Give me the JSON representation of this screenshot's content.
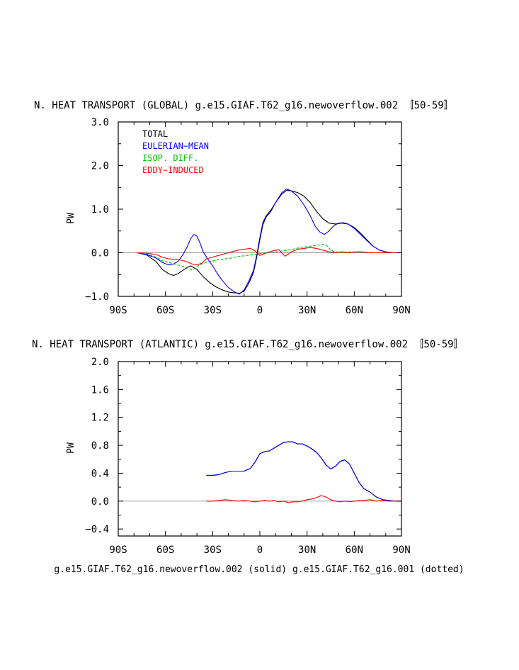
{
  "caption": "g.e15.GIAF.T62_g16.newoverflow.002 (solid) g.e15.GIAF.T62_g16.001 (dotted)",
  "colors": {
    "total": "#000000",
    "eulerian": "#0000ff",
    "isop": "#00c000",
    "eddy": "#ff0000",
    "zero": "#999999"
  },
  "chart_data": [
    {
      "type": "line",
      "title": "N. HEAT TRANSPORT (GLOBAL) g.e15.GIAF.T62_g16.newoverflow.002 〚50-59〛",
      "ylabel": "PW",
      "xlim": [
        -90,
        90
      ],
      "ylim": [
        -1.0,
        3.0
      ],
      "xticks": [
        -90,
        -60,
        -30,
        0,
        30,
        60,
        90
      ],
      "xticklabels": [
        "90S",
        "60S",
        "30S",
        "0",
        "30N",
        "60N",
        "90N"
      ],
      "yticks": [
        -1.0,
        0.0,
        1.0,
        2.0,
        3.0
      ],
      "yticklabels": [
        "−1.0",
        "0.0",
        "1.0",
        "2.0",
        "3.0"
      ],
      "legend": [
        "TOTAL",
        "EULERIAN−MEAN",
        "ISOP. DIFF.",
        "EDDY−INDUCED"
      ],
      "legend_position": "top-left",
      "series": [
        {
          "name": "TOTAL",
          "key": "total",
          "x": [
            -78,
            -72,
            -66,
            -62,
            -58,
            -55,
            -52,
            -48,
            -44,
            -40,
            -36,
            -32,
            -28,
            -24,
            -20,
            -16,
            -13,
            -10,
            -7,
            -4,
            -2,
            0,
            2,
            4,
            7,
            10,
            14,
            17,
            20,
            24,
            28,
            32,
            36,
            40,
            44,
            48,
            52,
            56,
            60,
            64,
            68,
            72,
            76,
            80,
            85,
            90
          ],
          "y": [
            0,
            -0.05,
            -0.2,
            -0.38,
            -0.48,
            -0.52,
            -0.48,
            -0.38,
            -0.3,
            -0.38,
            -0.55,
            -0.68,
            -0.78,
            -0.85,
            -0.9,
            -0.92,
            -0.93,
            -0.88,
            -0.7,
            -0.45,
            -0.1,
            0.3,
            0.65,
            0.82,
            0.95,
            1.15,
            1.35,
            1.43,
            1.42,
            1.38,
            1.3,
            1.15,
            0.95,
            0.78,
            0.68,
            0.66,
            0.68,
            0.66,
            0.58,
            0.45,
            0.3,
            0.15,
            0.06,
            0.02,
            0,
            0
          ]
        },
        {
          "name": "EULERIAN−MEAN",
          "key": "eulerian",
          "x": [
            -78,
            -72,
            -66,
            -62,
            -58,
            -55,
            -52,
            -49,
            -46,
            -44,
            -42,
            -40,
            -38,
            -36,
            -33,
            -30,
            -27,
            -24,
            -20,
            -16,
            -13,
            -10,
            -7,
            -4,
            -2,
            0,
            2,
            4,
            7,
            10,
            14,
            17,
            20,
            24,
            28,
            32,
            35,
            38,
            41,
            44,
            47,
            50,
            53,
            56,
            60,
            64,
            68,
            72,
            76,
            80,
            85,
            90
          ],
          "y": [
            0,
            -0.04,
            -0.12,
            -0.22,
            -0.28,
            -0.26,
            -0.2,
            -0.05,
            0.15,
            0.32,
            0.42,
            0.38,
            0.22,
            0.02,
            -0.15,
            -0.3,
            -0.48,
            -0.63,
            -0.8,
            -0.9,
            -0.95,
            -0.85,
            -0.65,
            -0.4,
            -0.05,
            0.35,
            0.7,
            0.85,
            0.98,
            1.15,
            1.38,
            1.46,
            1.42,
            1.3,
            1.1,
            0.85,
            0.62,
            0.48,
            0.42,
            0.5,
            0.62,
            0.68,
            0.69,
            0.66,
            0.56,
            0.42,
            0.28,
            0.15,
            0.06,
            0.02,
            0,
            0
          ]
        },
        {
          "name": "ISOP. DIFF.",
          "key": "isop",
          "x": [
            -78,
            -72,
            -66,
            -62,
            -58,
            -54,
            -50,
            -46,
            -43,
            -40,
            -37,
            -34,
            -30,
            -26,
            -22,
            -18,
            -14,
            -10,
            -6,
            -2,
            2,
            6,
            10,
            14,
            18,
            22,
            26,
            30,
            34,
            38,
            41,
            43,
            45,
            48,
            52,
            56,
            60,
            64,
            68,
            72,
            76,
            80,
            85,
            90
          ],
          "y": [
            0,
            -0.02,
            -0.1,
            -0.18,
            -0.22,
            -0.26,
            -0.3,
            -0.34,
            -0.4,
            -0.32,
            -0.26,
            -0.22,
            -0.19,
            -0.16,
            -0.14,
            -0.12,
            -0.09,
            -0.07,
            -0.05,
            -0.03,
            -0.01,
            0,
            0.02,
            0.04,
            0.06,
            0.09,
            0.12,
            0.14,
            0.16,
            0.18,
            0.2,
            0.15,
            0.06,
            0.02,
            0.01,
            0.02,
            0.02,
            0.01,
            0.01,
            0,
            0,
            0,
            0,
            0
          ]
        },
        {
          "name": "EDDY−INDUCED",
          "key": "eddy",
          "x": [
            -78,
            -72,
            -66,
            -62,
            -58,
            -54,
            -50,
            -46,
            -43,
            -40,
            -37,
            -34,
            -30,
            -26,
            -22,
            -18,
            -14,
            -10,
            -6,
            -3,
            0,
            3,
            6,
            9,
            12,
            16,
            20,
            24,
            28,
            32,
            36,
            40,
            44,
            48,
            52,
            56,
            60,
            64,
            68,
            72,
            76,
            80,
            85,
            90
          ],
          "y": [
            0,
            -0.01,
            -0.04,
            -0.1,
            -0.14,
            -0.15,
            -0.17,
            -0.21,
            -0.26,
            -0.28,
            -0.24,
            -0.14,
            -0.1,
            -0.06,
            -0.02,
            0.02,
            0.06,
            0.08,
            0.1,
            0.04,
            -0.06,
            -0.02,
            0.02,
            0.05,
            0.07,
            -0.08,
            0.02,
            0.08,
            0.1,
            0.12,
            0.1,
            0.06,
            0.02,
            0.01,
            0.02,
            0.0,
            0.02,
            0.02,
            0.01,
            0,
            0,
            0,
            0,
            0
          ]
        }
      ]
    },
    {
      "type": "line",
      "title": "N. HEAT TRANSPORT (ATLANTIC) g.e15.GIAF.T62_g16.newoverflow.002 〚50-59〛",
      "ylabel": "PW",
      "xlim": [
        -90,
        90
      ],
      "ylim": [
        -0.5,
        2.0
      ],
      "xticks": [
        -90,
        -60,
        -30,
        0,
        30,
        60,
        90
      ],
      "xticklabels": [
        "90S",
        "60S",
        "30S",
        "0",
        "30N",
        "60N",
        "90N"
      ],
      "yticks": [
        -0.4,
        0.0,
        0.4,
        0.8,
        1.2,
        1.6,
        2.0
      ],
      "yticklabels": [
        "−0.4",
        "0.0",
        "0.4",
        "0.8",
        "1.2",
        "1.6",
        "2.0"
      ],
      "series": [
        {
          "key": "total",
          "x": [
            -34,
            -30,
            -26,
            -22,
            -18,
            -14,
            -10,
            -6,
            -3,
            0,
            3,
            6,
            9,
            12,
            15,
            18,
            21,
            24,
            27,
            30,
            33,
            36,
            39,
            42,
            45,
            48,
            51,
            54,
            57,
            60,
            63,
            66,
            70,
            74,
            78,
            82,
            86,
            90
          ],
          "y": [
            0.37,
            0.37,
            0.38,
            0.41,
            0.43,
            0.43,
            0.43,
            0.47,
            0.56,
            0.68,
            0.71,
            0.72,
            0.76,
            0.8,
            0.84,
            0.85,
            0.85,
            0.82,
            0.82,
            0.79,
            0.75,
            0.7,
            0.62,
            0.52,
            0.46,
            0.5,
            0.57,
            0.59,
            0.53,
            0.4,
            0.27,
            0.18,
            0.13,
            0.06,
            0.02,
            0.01,
            0,
            0
          ]
        },
        {
          "key": "eulerian",
          "x": [
            -34,
            -30,
            -26,
            -22,
            -18,
            -14,
            -10,
            -6,
            -3,
            0,
            3,
            6,
            9,
            12,
            15,
            18,
            21,
            24,
            27,
            30,
            33,
            36,
            39,
            42,
            45,
            48,
            51,
            54,
            57,
            60,
            63,
            66,
            70,
            74,
            78,
            82,
            86,
            90
          ],
          "y": [
            0.37,
            0.37,
            0.38,
            0.41,
            0.43,
            0.43,
            0.43,
            0.47,
            0.56,
            0.68,
            0.71,
            0.72,
            0.76,
            0.8,
            0.84,
            0.85,
            0.85,
            0.82,
            0.82,
            0.79,
            0.75,
            0.7,
            0.62,
            0.52,
            0.46,
            0.5,
            0.57,
            0.59,
            0.53,
            0.4,
            0.27,
            0.18,
            0.13,
            0.06,
            0.02,
            0.01,
            0,
            0
          ]
        },
        {
          "key": "eddy",
          "x": [
            -34,
            -30,
            -26,
            -22,
            -18,
            -14,
            -10,
            -6,
            -3,
            0,
            3,
            6,
            9,
            12,
            15,
            18,
            21,
            24,
            27,
            30,
            33,
            36,
            39,
            42,
            45,
            48,
            51,
            54,
            57,
            60,
            63,
            66,
            70,
            74,
            78,
            82,
            86,
            90
          ],
          "y": [
            0,
            0,
            0.01,
            0.02,
            0.01,
            0,
            0.01,
            0,
            -0.01,
            0,
            0.01,
            0,
            0.01,
            -0.01,
            0,
            -0.02,
            -0.01,
            -0.01,
            0,
            0.02,
            0.03,
            0.05,
            0.08,
            0.06,
            0.02,
            0,
            -0.01,
            0,
            -0.01,
            0,
            0.01,
            0.01,
            0.02,
            0,
            0.01,
            0,
            0,
            0
          ]
        }
      ]
    }
  ]
}
